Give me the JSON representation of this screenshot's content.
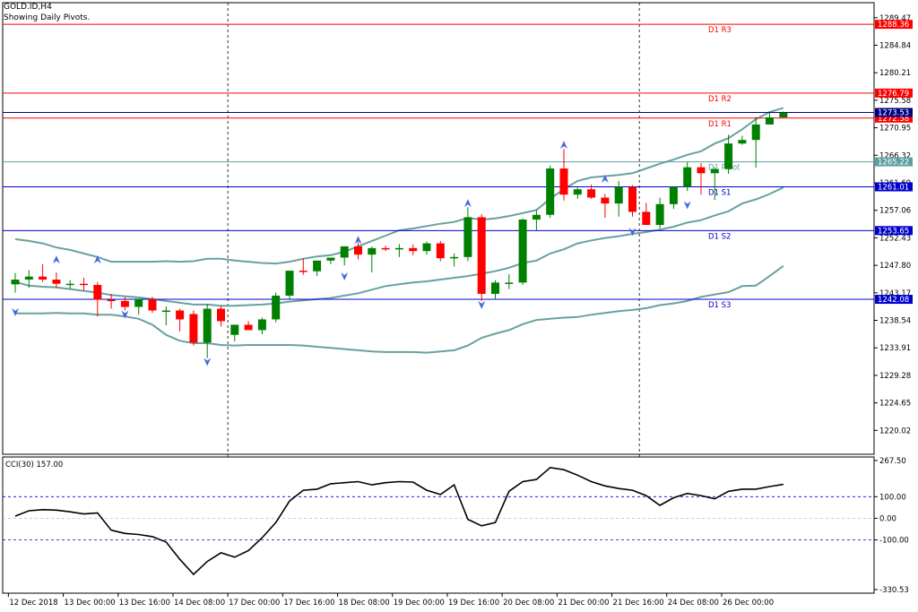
{
  "header": {
    "symbol": "GOLD.ID,H4",
    "subtitle": "Showing Daily Pivots."
  },
  "chart_data": [
    {
      "type": "candlestick",
      "title": "GOLD.ID,H4",
      "ylim": [
        1216.0,
        1292.0
      ],
      "y_ticks": [
        "1289.47",
        "1284.84",
        "1280.21",
        "1275.58",
        "1270.95",
        "1266.32",
        "1261.69",
        "1257.06",
        "1252.43",
        "1247.80",
        "1243.17",
        "1238.54",
        "1233.91",
        "1229.28",
        "1224.65",
        "1220.02"
      ],
      "x_labels": [
        {
          "i": 0,
          "label": "12 Dec 2018"
        },
        {
          "i": 4,
          "label": "13 Dec 00:00"
        },
        {
          "i": 8,
          "label": "13 Dec 16:00"
        },
        {
          "i": 12,
          "label": "14 Dec 08:00"
        },
        {
          "i": 16,
          "label": "17 Dec 00:00"
        },
        {
          "i": 20,
          "label": "17 Dec 16:00"
        },
        {
          "i": 24,
          "label": "18 Dec 08:00"
        },
        {
          "i": 28,
          "label": "19 Dec 00:00"
        },
        {
          "i": 32,
          "label": "19 Dec 16:00"
        },
        {
          "i": 36,
          "label": "20 Dec 08:00"
        },
        {
          "i": 40,
          "label": "21 Dec 00:00"
        },
        {
          "i": 44,
          "label": "21 Dec 16:00"
        },
        {
          "i": 48,
          "label": "24 Dec 08:00"
        },
        {
          "i": 52,
          "label": "26 Dec 00:00"
        }
      ],
      "separators": [
        16,
        46
      ],
      "pivots": [
        {
          "name": "D1 R3",
          "value": 1288.36,
          "color": "#ff0000",
          "label": "1288.36"
        },
        {
          "name": "D1 R2",
          "value": 1276.79,
          "color": "#ff0000",
          "label": "1276.79"
        },
        {
          "name": "D1 R1",
          "value": 1272.58,
          "color": "#ff0000",
          "label": "1272.58"
        },
        {
          "name": "D1 Pivot",
          "value": 1265.22,
          "color": "#5f9ea0",
          "label": "1265.22"
        },
        {
          "name": "D1 S1",
          "value": 1261.01,
          "color": "#0000cd",
          "label": "1261.01"
        },
        {
          "name": "D1 S2",
          "value": 1253.65,
          "color": "#0000cd",
          "label": "1253.65"
        },
        {
          "name": "D1 S3",
          "value": 1242.08,
          "color": "#0000cd",
          "label": "1242.08"
        }
      ],
      "current_price": {
        "value": 1273.53,
        "label": "1273.53",
        "color": "#000080"
      },
      "candles": [
        {
          "o": 1244.6,
          "h": 1246.5,
          "l": 1243.2,
          "c": 1245.4
        },
        {
          "o": 1245.4,
          "h": 1247.0,
          "l": 1244.0,
          "c": 1245.9
        },
        {
          "o": 1245.9,
          "h": 1248.0,
          "l": 1245.0,
          "c": 1245.4
        },
        {
          "o": 1245.4,
          "h": 1246.6,
          "l": 1244.0,
          "c": 1244.7
        },
        {
          "o": 1244.7,
          "h": 1245.3,
          "l": 1243.8,
          "c": 1244.7
        },
        {
          "o": 1244.7,
          "h": 1245.7,
          "l": 1243.6,
          "c": 1244.5
        },
        {
          "o": 1244.5,
          "h": 1245.0,
          "l": 1239.2,
          "c": 1242.0
        },
        {
          "o": 1242.0,
          "h": 1243.0,
          "l": 1240.5,
          "c": 1241.8
        },
        {
          "o": 1241.8,
          "h": 1242.5,
          "l": 1240.2,
          "c": 1240.8
        },
        {
          "o": 1240.8,
          "h": 1242.0,
          "l": 1239.5,
          "c": 1242.1
        },
        {
          "o": 1242.1,
          "h": 1242.5,
          "l": 1239.8,
          "c": 1240.2
        },
        {
          "o": 1240.2,
          "h": 1240.9,
          "l": 1237.7,
          "c": 1240.2
        },
        {
          "o": 1240.2,
          "h": 1240.5,
          "l": 1236.7,
          "c": 1238.7
        },
        {
          "o": 1239.6,
          "h": 1240.2,
          "l": 1234.3,
          "c": 1234.8
        },
        {
          "o": 1234.8,
          "h": 1241.3,
          "l": 1232.2,
          "c": 1240.5
        },
        {
          "o": 1240.5,
          "h": 1241.0,
          "l": 1237.5,
          "c": 1238.4
        },
        {
          "o": 1236.1,
          "h": 1237.8,
          "l": 1235.0,
          "c": 1237.8
        },
        {
          "o": 1237.8,
          "h": 1238.4,
          "l": 1236.9,
          "c": 1236.9
        },
        {
          "o": 1236.9,
          "h": 1239.0,
          "l": 1236.2,
          "c": 1238.7
        },
        {
          "o": 1238.7,
          "h": 1243.2,
          "l": 1238.2,
          "c": 1242.7
        },
        {
          "o": 1242.7,
          "h": 1246.9,
          "l": 1242.1,
          "c": 1246.9
        },
        {
          "o": 1246.9,
          "h": 1249.0,
          "l": 1246.2,
          "c": 1246.8
        },
        {
          "o": 1246.8,
          "h": 1248.6,
          "l": 1246.0,
          "c": 1248.6
        },
        {
          "o": 1248.6,
          "h": 1249.1,
          "l": 1248.0,
          "c": 1249.1
        },
        {
          "o": 1249.1,
          "h": 1251.0,
          "l": 1247.8,
          "c": 1251.0
        },
        {
          "o": 1251.0,
          "h": 1251.7,
          "l": 1248.8,
          "c": 1249.6
        },
        {
          "o": 1249.6,
          "h": 1251.0,
          "l": 1246.6,
          "c": 1250.7
        },
        {
          "o": 1250.7,
          "h": 1251.1,
          "l": 1250.2,
          "c": 1250.5
        },
        {
          "o": 1250.5,
          "h": 1251.4,
          "l": 1249.2,
          "c": 1250.7
        },
        {
          "o": 1250.7,
          "h": 1251.3,
          "l": 1249.5,
          "c": 1250.2
        },
        {
          "o": 1250.2,
          "h": 1251.8,
          "l": 1249.6,
          "c": 1251.5
        },
        {
          "o": 1251.5,
          "h": 1251.9,
          "l": 1248.5,
          "c": 1249.0
        },
        {
          "o": 1249.0,
          "h": 1249.8,
          "l": 1247.6,
          "c": 1249.2
        },
        {
          "o": 1249.2,
          "h": 1257.6,
          "l": 1248.5,
          "c": 1255.9
        },
        {
          "o": 1255.9,
          "h": 1256.4,
          "l": 1241.8,
          "c": 1243.0
        },
        {
          "o": 1243.0,
          "h": 1245.3,
          "l": 1242.2,
          "c": 1244.9
        },
        {
          "o": 1244.9,
          "h": 1246.3,
          "l": 1243.8,
          "c": 1244.9
        },
        {
          "o": 1244.9,
          "h": 1255.7,
          "l": 1244.5,
          "c": 1255.5
        },
        {
          "o": 1255.5,
          "h": 1257.1,
          "l": 1253.7,
          "c": 1256.3
        },
        {
          "o": 1256.3,
          "h": 1264.6,
          "l": 1255.8,
          "c": 1264.1
        },
        {
          "o": 1264.1,
          "h": 1267.4,
          "l": 1258.7,
          "c": 1259.7
        },
        {
          "o": 1259.7,
          "h": 1260.9,
          "l": 1259.0,
          "c": 1260.6
        },
        {
          "o": 1260.6,
          "h": 1261.4,
          "l": 1259.0,
          "c": 1259.2
        },
        {
          "o": 1259.2,
          "h": 1259.8,
          "l": 1255.8,
          "c": 1258.2
        },
        {
          "o": 1258.2,
          "h": 1262.0,
          "l": 1256.0,
          "c": 1261.0
        },
        {
          "o": 1261.0,
          "h": 1261.3,
          "l": 1256.0,
          "c": 1256.8
        },
        {
          "o": 1256.8,
          "h": 1258.3,
          "l": 1255.0,
          "c": 1254.6
        },
        {
          "o": 1254.6,
          "h": 1259.2,
          "l": 1254.0,
          "c": 1258.1
        },
        {
          "o": 1258.1,
          "h": 1261.1,
          "l": 1257.3,
          "c": 1261.0
        },
        {
          "o": 1261.0,
          "h": 1265.2,
          "l": 1260.3,
          "c": 1264.3
        },
        {
          "o": 1264.3,
          "h": 1265.0,
          "l": 1259.7,
          "c": 1263.3
        },
        {
          "o": 1263.3,
          "h": 1264.3,
          "l": 1258.8,
          "c": 1264.0
        },
        {
          "o": 1264.0,
          "h": 1269.8,
          "l": 1263.2,
          "c": 1268.3
        },
        {
          "o": 1268.3,
          "h": 1269.6,
          "l": 1268.1,
          "c": 1268.9
        },
        {
          "o": 1268.9,
          "h": 1272.8,
          "l": 1264.2,
          "c": 1271.5
        },
        {
          "o": 1271.5,
          "h": 1273.5,
          "l": 1271.5,
          "c": 1272.7
        },
        {
          "o": 1272.7,
          "h": 1273.7,
          "l": 1272.7,
          "c": 1273.5
        }
      ],
      "bands": {
        "upper": [
          1252.2,
          1251.9,
          1251.5,
          1250.8,
          1250.4,
          1249.8,
          1249.2,
          1248.4,
          1248.4,
          1248.4,
          1248.4,
          1248.5,
          1248.4,
          1248.5,
          1248.9,
          1248.9,
          1248.6,
          1248.4,
          1248.2,
          1248.1,
          1248.4,
          1248.9,
          1249.3,
          1249.5,
          1250.1,
          1251.0,
          1251.9,
          1252.8,
          1253.7,
          1254.0,
          1254.4,
          1254.8,
          1255.1,
          1255.8,
          1255.5,
          1255.7,
          1256.1,
          1256.6,
          1257.1,
          1259.0,
          1260.6,
          1262.0,
          1262.6,
          1262.8,
          1263.0,
          1263.3,
          1264.1,
          1264.9,
          1265.6,
          1266.4,
          1267.0,
          1268.3,
          1269.2,
          1270.7,
          1272.4,
          1273.6,
          1274.3
        ],
        "middle": [
          1245.0,
          1244.4,
          1244.2,
          1244.1,
          1243.8,
          1243.5,
          1243.2,
          1242.8,
          1242.6,
          1242.4,
          1242.1,
          1241.8,
          1241.5,
          1241.2,
          1241.2,
          1241.0,
          1241.0,
          1241.1,
          1241.2,
          1241.4,
          1241.7,
          1241.9,
          1242.1,
          1242.3,
          1242.7,
          1243.1,
          1243.7,
          1244.3,
          1244.6,
          1244.9,
          1245.1,
          1245.4,
          1245.7,
          1246.0,
          1246.4,
          1246.8,
          1247.4,
          1248.2,
          1248.6,
          1249.8,
          1250.5,
          1251.5,
          1252.0,
          1252.4,
          1252.7,
          1253.1,
          1253.4,
          1253.8,
          1254.3,
          1255.0,
          1255.4,
          1256.2,
          1256.9,
          1258.2,
          1258.9,
          1259.8,
          1260.9
        ],
        "lower": [
          1239.7,
          1239.7,
          1239.7,
          1239.8,
          1239.7,
          1239.7,
          1239.5,
          1239.5,
          1239.2,
          1238.8,
          1237.8,
          1236.1,
          1235.1,
          1234.7,
          1234.7,
          1234.4,
          1234.3,
          1234.4,
          1234.4,
          1234.4,
          1234.4,
          1234.3,
          1234.1,
          1233.9,
          1233.7,
          1233.5,
          1233.3,
          1233.2,
          1233.2,
          1233.2,
          1233.1,
          1233.3,
          1233.5,
          1234.3,
          1235.6,
          1236.3,
          1236.9,
          1237.9,
          1238.6,
          1238.8,
          1239.0,
          1239.1,
          1239.5,
          1239.8,
          1240.1,
          1240.3,
          1240.6,
          1241.1,
          1241.4,
          1241.8,
          1242.5,
          1242.9,
          1243.3,
          1244.3,
          1244.4,
          1246.0,
          1247.7
        ]
      },
      "fractals_up": [
        {
          "i": 3,
          "v": 1248.7
        },
        {
          "i": 6,
          "v": 1248.7
        },
        {
          "i": 25,
          "v": 1252.0
        },
        {
          "i": 33,
          "v": 1258.2
        },
        {
          "i": 40,
          "v": 1268.0
        },
        {
          "i": 43,
          "v": 1262.3
        }
      ],
      "fractals_down": [
        {
          "i": 0,
          "v": 1240.0
        },
        {
          "i": 8,
          "v": 1239.6
        },
        {
          "i": 14,
          "v": 1231.6
        },
        {
          "i": 24,
          "v": 1246.0
        },
        {
          "i": 34,
          "v": 1241.2
        },
        {
          "i": 45,
          "v": 1253.5
        },
        {
          "i": 49,
          "v": 1258.0
        }
      ]
    },
    {
      "type": "line",
      "title": "CCI(30) 157.00",
      "name": "CCI(30)",
      "ylim": [
        -330.53,
        267.5
      ],
      "y_ticks": [
        {
          "value": 267.5,
          "label": "267.50"
        },
        {
          "value": 100,
          "label": "100.00"
        },
        {
          "value": 0,
          "label": "0.00"
        },
        {
          "value": -100,
          "label": "-100.00"
        },
        {
          "value": -330.53,
          "label": "-330.53"
        }
      ],
      "levels": [
        100,
        -100
      ],
      "values": [
        10,
        35,
        40,
        38,
        30,
        20,
        25,
        -55,
        -70,
        -75,
        -85,
        -110,
        -190,
        -260,
        -200,
        -160,
        -180,
        -150,
        -90,
        -20,
        80,
        130,
        135,
        160,
        165,
        170,
        155,
        165,
        170,
        168,
        130,
        110,
        155,
        -5,
        -35,
        -20,
        125,
        170,
        180,
        235,
        225,
        200,
        170,
        150,
        138,
        130,
        105,
        60,
        95,
        115,
        105,
        90,
        125,
        135,
        135,
        147,
        157
      ]
    }
  ]
}
